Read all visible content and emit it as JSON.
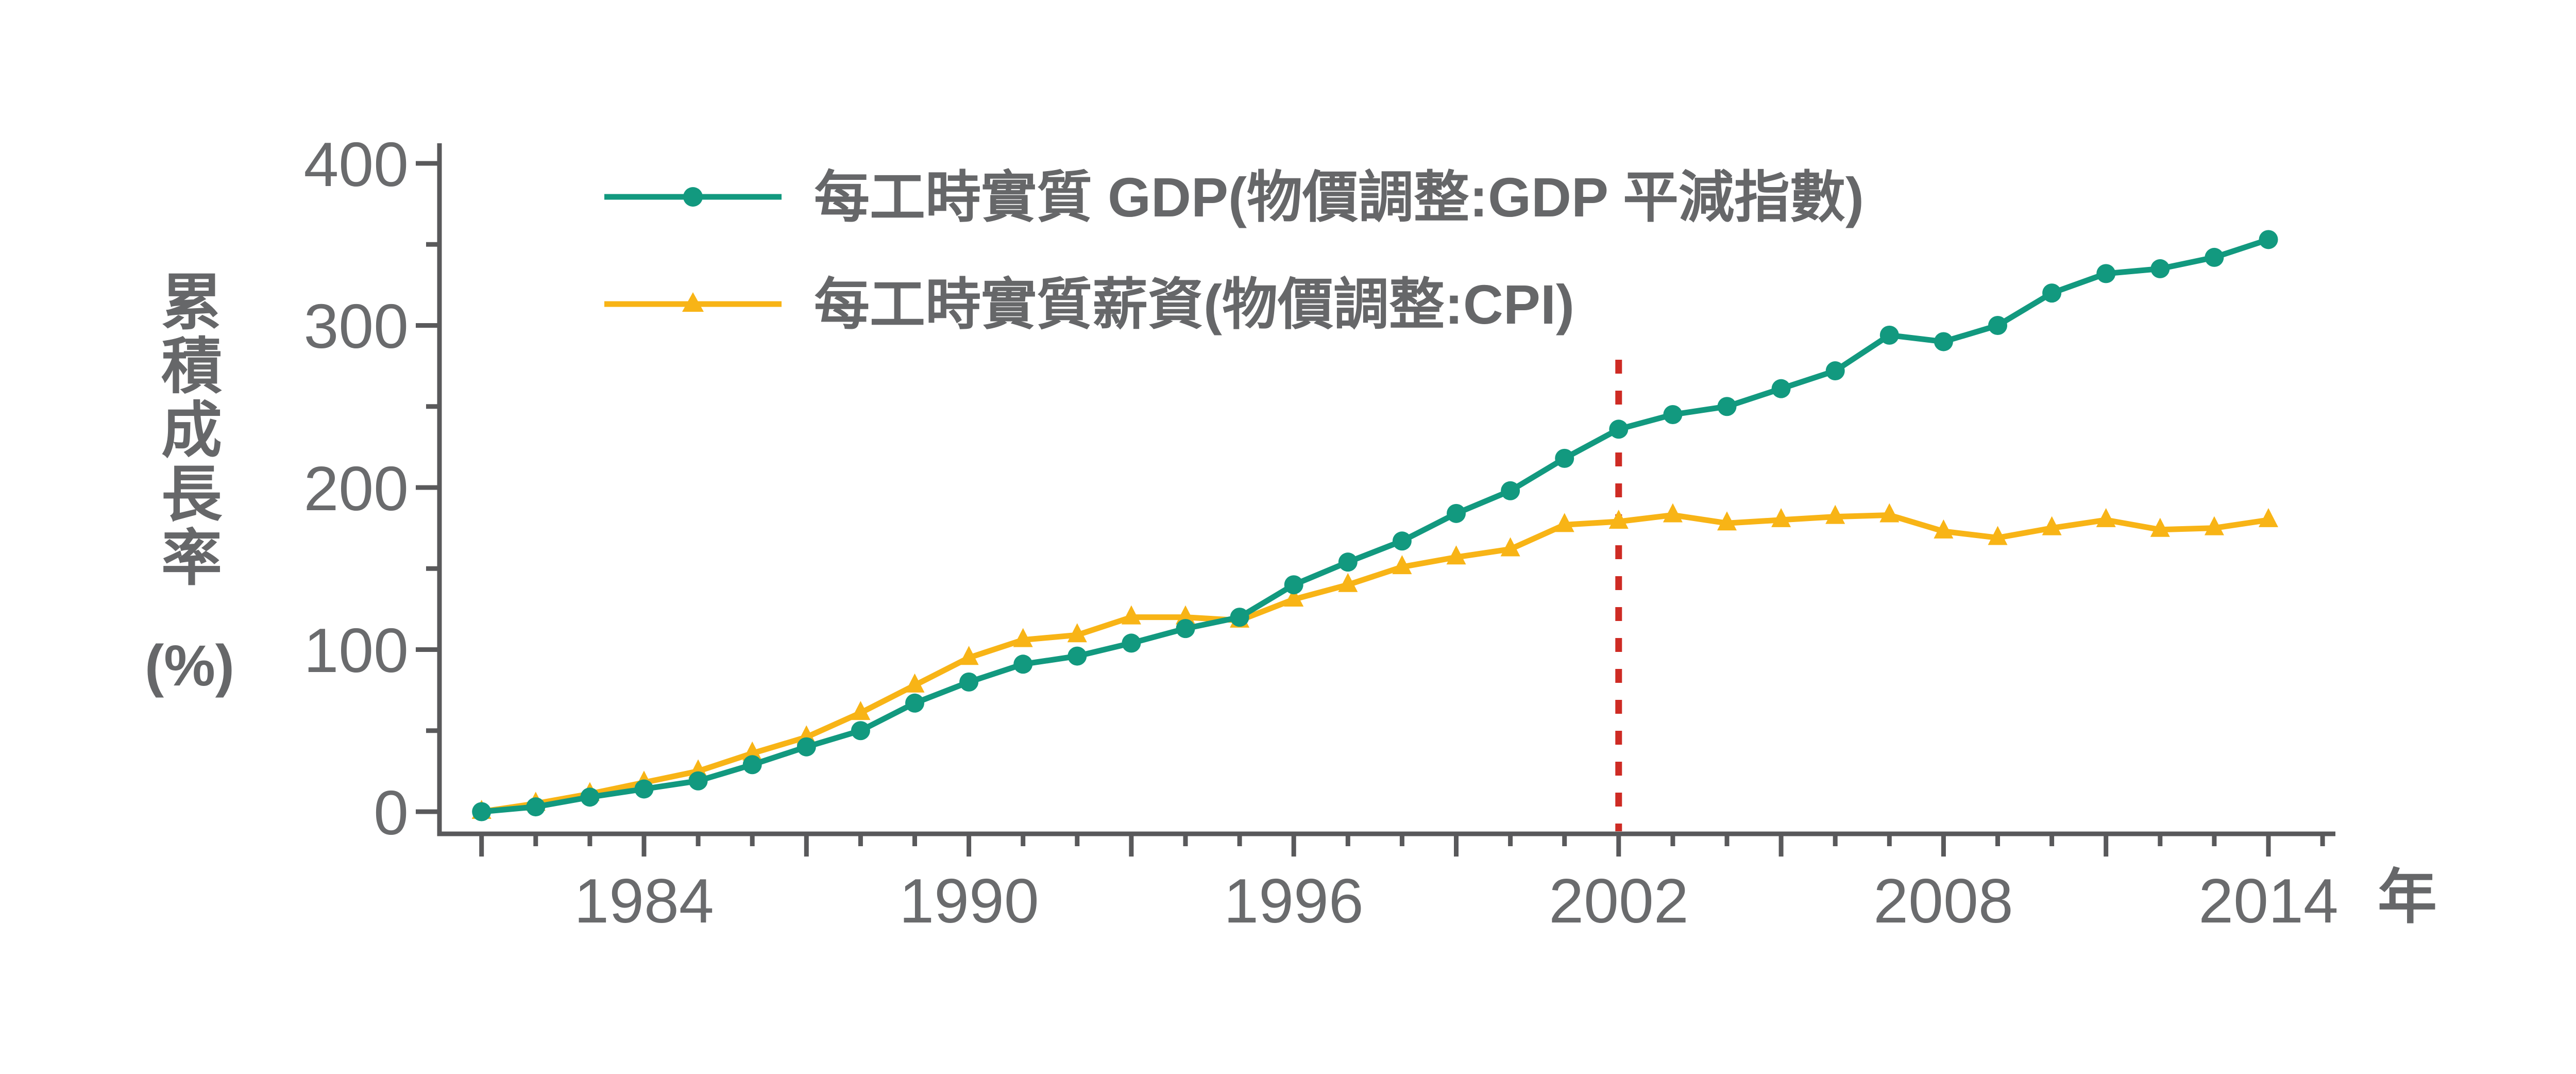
{
  "chart_data": {
    "type": "line",
    "title": "",
    "xlabel": "年",
    "ylabel": "累積成長率",
    "ylabel_unit": "(%)",
    "x": [
      1981,
      1982,
      1983,
      1984,
      1985,
      1986,
      1987,
      1988,
      1989,
      1990,
      1991,
      1992,
      1993,
      1994,
      1995,
      1996,
      1997,
      1998,
      1999,
      2000,
      2001,
      2002,
      2003,
      2004,
      2005,
      2006,
      2007,
      2008,
      2009,
      2010,
      2011,
      2012,
      2013,
      2014
    ],
    "series": [
      {
        "name": "每工時實質 GDP(物價調整:GDP 平減指數)",
        "marker": "circle",
        "color": "#12997f",
        "values": [
          0,
          3,
          9,
          14,
          19,
          29,
          40,
          50,
          67,
          80,
          91,
          96,
          104,
          113,
          120,
          140,
          154,
          167,
          184,
          198,
          218,
          236,
          245,
          250,
          261,
          272,
          294,
          290,
          300,
          320,
          332,
          335,
          342,
          353
        ]
      },
      {
        "name": "每工時實質薪資(物價調整:CPI)",
        "marker": "triangle",
        "color": "#f8b416",
        "values": [
          0,
          5,
          11,
          18,
          25,
          36,
          46,
          61,
          78,
          95,
          106,
          109,
          120,
          120,
          118,
          131,
          140,
          151,
          157,
          162,
          177,
          179,
          183,
          178,
          180,
          182,
          183,
          173,
          169,
          175,
          180,
          174,
          175,
          180
        ]
      }
    ],
    "ylim": [
      0,
      400
    ],
    "y_major_ticks": [
      0,
      100,
      200,
      300,
      400
    ],
    "y_minor_tick_step": 50,
    "x_labeled_ticks": [
      1984,
      1990,
      1996,
      2002,
      2008,
      2014
    ],
    "x_tick_start": 1981,
    "x_tick_end": 2015,
    "x_major_tick_every": 3,
    "grid": false,
    "legend_position": "top-left",
    "reference_line": {
      "x": 2002,
      "color": "#ce2b24",
      "style": "dashed"
    }
  },
  "axes": {
    "y_tick_labels": [
      "0",
      "100",
      "200",
      "300",
      "400"
    ],
    "x_tick_labels": [
      "1984",
      "1990",
      "1996",
      "2002",
      "2008",
      "2014"
    ],
    "x_axis_suffix": "年",
    "y_title_chars": [
      "累",
      "積",
      "成",
      "長",
      "率"
    ],
    "y_title_unit": "(%)"
  },
  "legend": {
    "items": [
      {
        "label": "每工時實質 GDP(物價調整:GDP 平減指數)",
        "marker": "circle",
        "color": "#12997f"
      },
      {
        "label": "每工時實質薪資(物價調整:CPI)",
        "marker": "triangle",
        "color": "#f8b416"
      }
    ]
  },
  "colors": {
    "background": "#ffffff",
    "axis": "#59595b",
    "tick_label": "#6a6b6d",
    "text": "#666769",
    "gdp_series": "#12997f",
    "wage_series": "#f8b416",
    "reference_line": "#ce2b24"
  }
}
